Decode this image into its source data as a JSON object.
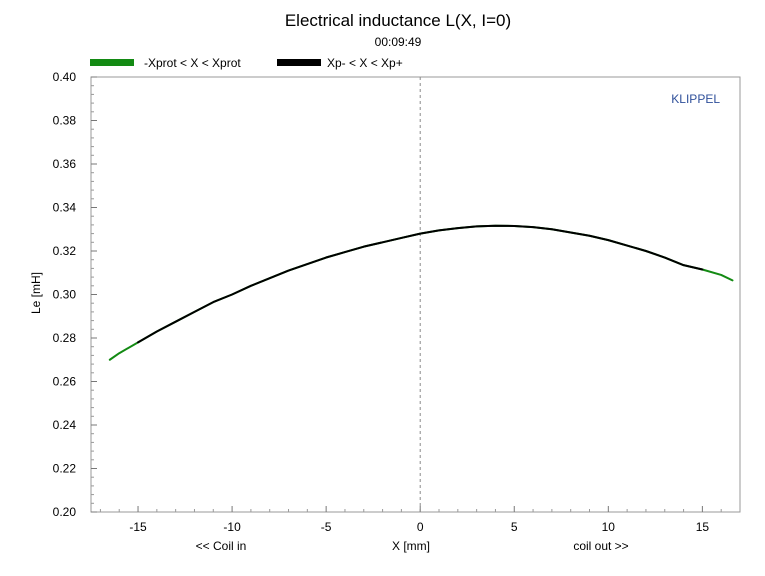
{
  "chart_data": {
    "type": "line",
    "title": "Electrical inductance L(X, I=0)",
    "subtitle": "00:09:49",
    "watermark": "KLIPPEL",
    "xlabel": "X [mm]",
    "ylabel": "Le [mH]",
    "x_left_note": "<< Coil in",
    "x_right_note": "coil out >>",
    "xlim": [
      -17.5,
      17.0
    ],
    "ylim": [
      0.2,
      0.4
    ],
    "xticks": [
      -15,
      -10,
      -5,
      0,
      5,
      10,
      15
    ],
    "yticks": [
      0.2,
      0.22,
      0.24,
      0.26,
      0.28,
      0.3,
      0.32,
      0.34,
      0.36,
      0.38,
      0.4
    ],
    "grid": false,
    "zero_line": "dashed vertical line at X = 0",
    "legend_placement": "top-left, above plot",
    "series": [
      {
        "name": "-Xprot < X < Xprot",
        "color": "#138a13",
        "x": [
          -16.5,
          -16,
          -15,
          -14,
          -13,
          -12,
          -11,
          -10,
          -9,
          -8,
          -7,
          -6,
          -5,
          -4,
          -3,
          -2,
          -1,
          0,
          1,
          2,
          3,
          4,
          5,
          6,
          7,
          8,
          9,
          10,
          11,
          12,
          13,
          14,
          15,
          16,
          16.6
        ],
        "y": [
          0.27,
          0.273,
          0.278,
          0.283,
          0.2875,
          0.292,
          0.2965,
          0.3,
          0.304,
          0.3075,
          0.311,
          0.314,
          0.317,
          0.3195,
          0.322,
          0.324,
          0.326,
          0.328,
          0.3295,
          0.3305,
          0.3313,
          0.3316,
          0.3315,
          0.331,
          0.33,
          0.3285,
          0.327,
          0.325,
          0.3225,
          0.32,
          0.317,
          0.3135,
          0.3115,
          0.309,
          0.3065
        ]
      },
      {
        "name": "Xp- < X < Xp+",
        "color": "#000000",
        "x": [
          -15,
          -14,
          -13,
          -12,
          -11,
          -10,
          -9,
          -8,
          -7,
          -6,
          -5,
          -4,
          -3,
          -2,
          -1,
          0,
          1,
          2,
          3,
          4,
          5,
          6,
          7,
          8,
          9,
          10,
          11,
          12,
          13,
          14,
          15
        ],
        "y": [
          0.278,
          0.283,
          0.2875,
          0.292,
          0.2965,
          0.3,
          0.304,
          0.3075,
          0.311,
          0.314,
          0.317,
          0.3195,
          0.322,
          0.324,
          0.326,
          0.328,
          0.3295,
          0.3305,
          0.3313,
          0.3316,
          0.3315,
          0.331,
          0.33,
          0.3285,
          0.327,
          0.325,
          0.3225,
          0.32,
          0.317,
          0.3135,
          0.3115
        ]
      }
    ]
  }
}
